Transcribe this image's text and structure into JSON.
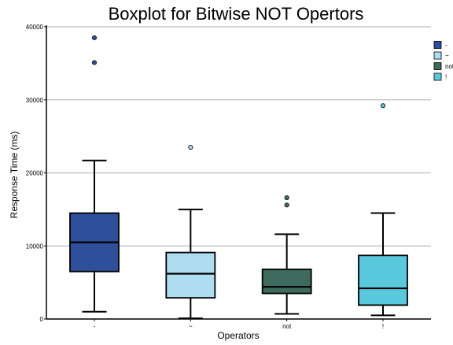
{
  "chart_data": {
    "type": "boxplot",
    "title": "Boxplot for Bitwise NOT Opertors",
    "xlabel": "Operators",
    "ylabel": "Response Time (ms)",
    "ylim": [
      0,
      40000
    ],
    "yticks": [
      0,
      10000,
      20000,
      30000,
      40000
    ],
    "grid": "horizontal",
    "legend_position": "top-right",
    "categories": [
      "-",
      "~",
      "not",
      "!"
    ],
    "series": [
      {
        "name": "-",
        "color": "#2f4f9b",
        "whisker_low": 1000,
        "q1": 6500,
        "median": 10500,
        "q3": 14500,
        "whisker_high": 21700,
        "outliers": [
          35100,
          38500
        ]
      },
      {
        "name": "~",
        "color": "#aedcf0",
        "whisker_low": 100,
        "q1": 2900,
        "median": 6200,
        "q3": 9100,
        "whisker_high": 15000,
        "outliers": [
          23500
        ]
      },
      {
        "name": "not",
        "color": "#3f6b5f",
        "whisker_low": 700,
        "q1": 3500,
        "median": 4400,
        "q3": 6800,
        "whisker_high": 11600,
        "outliers": [
          15600,
          16600
        ]
      },
      {
        "name": "!",
        "color": "#5ac8dc",
        "whisker_low": 500,
        "q1": 1900,
        "median": 4200,
        "q3": 8700,
        "whisker_high": 14500,
        "outliers": [
          29200
        ]
      }
    ]
  }
}
